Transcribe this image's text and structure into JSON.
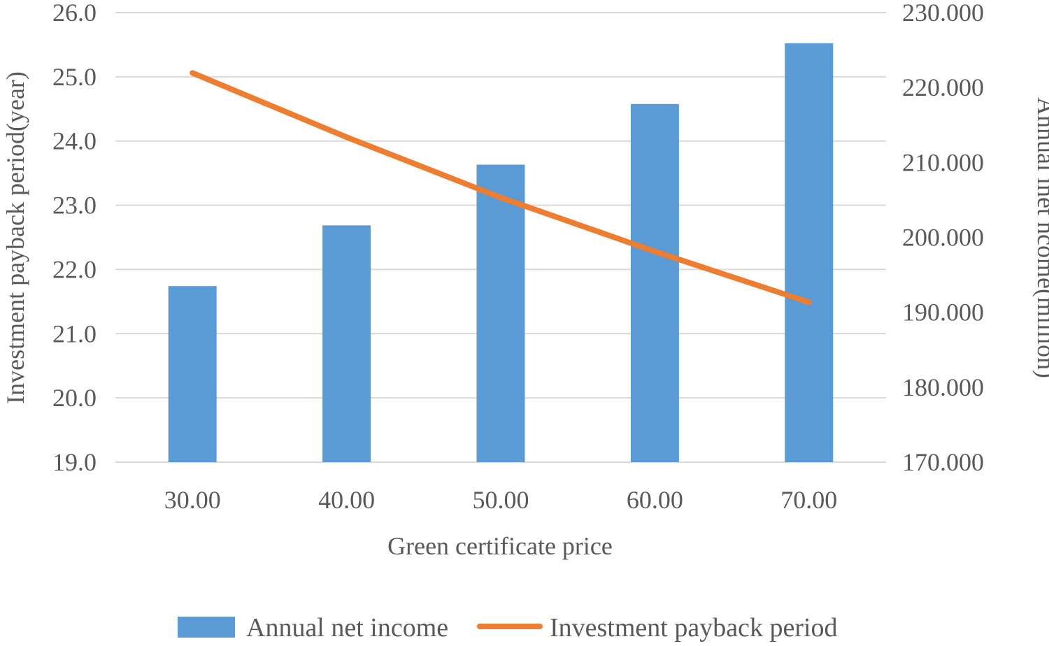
{
  "chart_data": {
    "type": "bar",
    "xlabel": "Green certificate price",
    "ylabel": "Investment payback period(year)",
    "y2label": "Annual inet ncome(million)",
    "categories": [
      "30.00",
      "40.00",
      "50.00",
      "60.00",
      "70.00"
    ],
    "y_ticks": [
      "19.0",
      "20.0",
      "21.0",
      "22.0",
      "23.0",
      "24.0",
      "25.0",
      "26.0"
    ],
    "y2_ticks": [
      "170.000",
      "180.000",
      "190.000",
      "200.000",
      "210.000",
      "220.000",
      "230.000"
    ],
    "ylim": [
      19,
      26
    ],
    "y2lim": [
      170,
      230
    ],
    "grid": true,
    "legend_position": "bottom",
    "series": [
      {
        "name": "Annual net income",
        "type": "bar",
        "axis": "right",
        "color": "#5B9BD5",
        "values": [
          193.5,
          201.6,
          209.7,
          217.8,
          225.9
        ]
      },
      {
        "name": "Investment payback period",
        "type": "line",
        "axis": "left",
        "color": "#ED7D31",
        "values": [
          25.06,
          24.06,
          23.12,
          22.28,
          21.49
        ]
      }
    ]
  }
}
